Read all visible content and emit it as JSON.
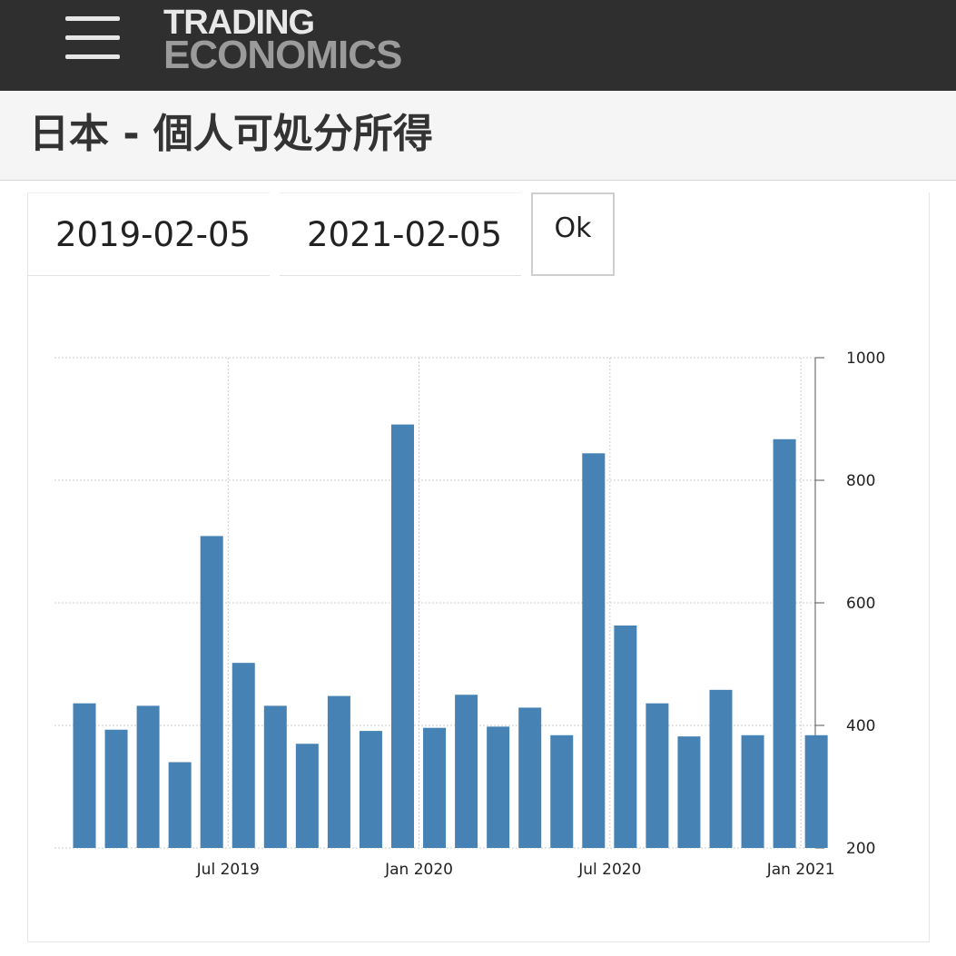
{
  "header": {
    "logo_line1": "TRADING",
    "logo_line2": "ECONOMICS",
    "menu_icon": "hamburger-menu-icon"
  },
  "page": {
    "title": "日本 - 個人可処分所得"
  },
  "filters": {
    "start_date": "2019-02-05",
    "end_date": "2021-02-05",
    "ok_label": "Ok"
  },
  "colors": {
    "bar": "#4682b4",
    "header_bg": "#2f2f2f",
    "grid": "#cccccc"
  },
  "chart_data": {
    "type": "bar",
    "title": "",
    "xlabel": "",
    "ylabel": "",
    "ylim": [
      200,
      1000
    ],
    "y_axis_side": "right",
    "grid": true,
    "yticks": [
      "1000",
      "800",
      "600",
      "400",
      "200"
    ],
    "xticks": [
      "Jul 2019",
      "Jan 2020",
      "Jul 2020",
      "Jan 2021"
    ],
    "categories": [
      "2019-02",
      "2019-03",
      "2019-04",
      "2019-05",
      "2019-06",
      "2019-07",
      "2019-08",
      "2019-09",
      "2019-10",
      "2019-11",
      "2019-12",
      "2020-01",
      "2020-02",
      "2020-03",
      "2020-04",
      "2020-05",
      "2020-06",
      "2020-07",
      "2020-08",
      "2020-09",
      "2020-10",
      "2020-11",
      "2020-12",
      "2021-01"
    ],
    "values": [
      436,
      393,
      432,
      340,
      709,
      502,
      432,
      370,
      448,
      391,
      891,
      396,
      450,
      398,
      429,
      384,
      844,
      563,
      436,
      382,
      458,
      384,
      867,
      384
    ]
  }
}
